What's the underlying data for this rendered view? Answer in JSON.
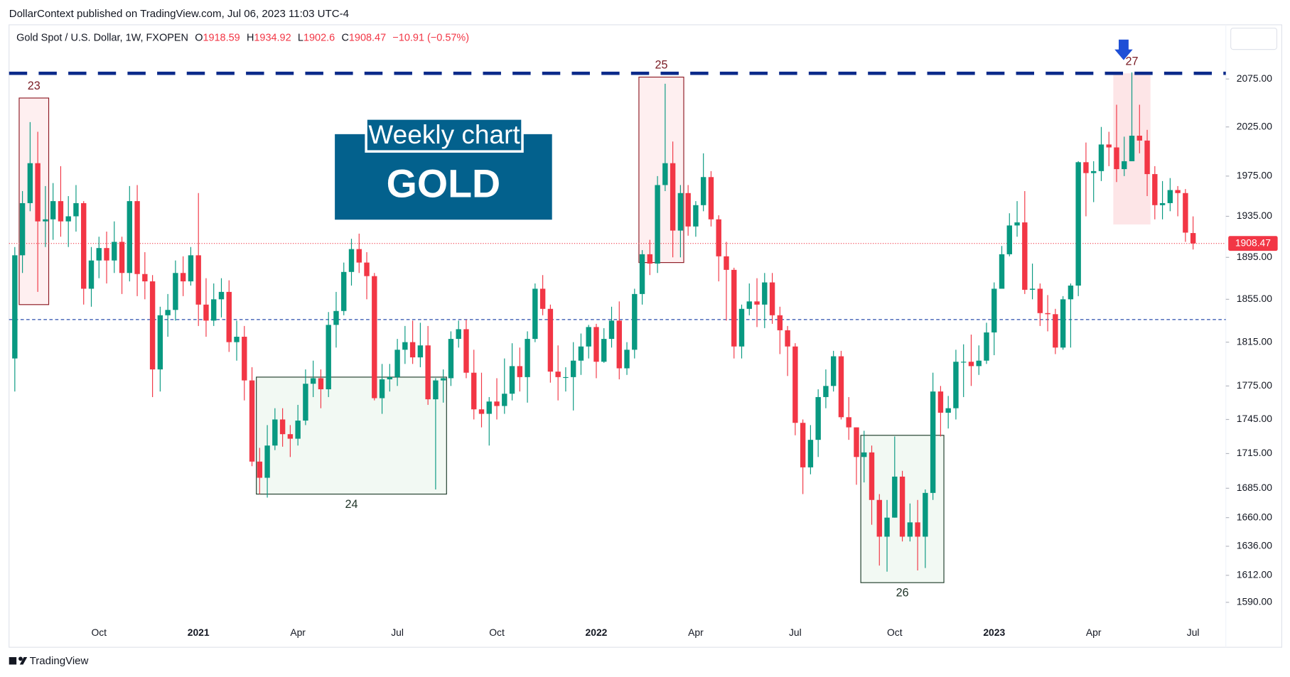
{
  "chart_data": {
    "type": "candlestick",
    "publisher_note": "DollarContext published on TradingView.com, Jul 06, 2023 11:03 UTC-4",
    "symbol": "Gold Spot / U.S. Dollar, 1W, FXOPEN",
    "ohlc_letters": [
      "O",
      "H",
      "L",
      "C"
    ],
    "change_text": "−10.91 (−0.57%)",
    "branding": "TradingView",
    "title_box": {
      "line1": "Weekly chart",
      "line2": "GOLD",
      "color": "#03618d"
    },
    "up_color": "#089981",
    "down_color": "#f23645",
    "log_scale": true,
    "ylim": [
      1575,
      2133
    ],
    "yticks": [
      {
        "value": 1590,
        "label": "1590.00"
      },
      {
        "value": 1612,
        "label": "1612.00"
      },
      {
        "value": 1636,
        "label": "1636.00"
      },
      {
        "value": 1660,
        "label": "1660.00"
      },
      {
        "value": 1685,
        "label": "1685.00"
      },
      {
        "value": 1715,
        "label": "1715.00"
      },
      {
        "value": 1745,
        "label": "1745.00"
      },
      {
        "value": 1775,
        "label": "1775.00"
      },
      {
        "value": 1815,
        "label": "1815.00"
      },
      {
        "value": 1855,
        "label": "1855.00"
      },
      {
        "value": 1895,
        "label": "1895.00"
      },
      {
        "value": 1935,
        "label": "1935.00"
      },
      {
        "value": 1975,
        "label": "1975.00"
      },
      {
        "value": 2025,
        "label": "2025.00"
      },
      {
        "value": 2075,
        "label": "2075.00"
      }
    ],
    "resistance_line": {
      "value": 2081,
      "color": "#0b2a8a"
    },
    "support_line": {
      "value": 1836,
      "color": "#3f5fb5"
    },
    "last_price_color": "#f23645",
    "annotations": [
      {
        "label": "23",
        "start": 1,
        "end": 4,
        "top": 2055,
        "bottom": 1850,
        "style": "red",
        "label_pos": "top"
      },
      {
        "label": "24",
        "start": 32,
        "end": 56,
        "top": 1783,
        "bottom": 1680,
        "style": "green",
        "label_pos": "bottom"
      },
      {
        "label": "25",
        "start": 82,
        "end": 87,
        "top": 2077,
        "bottom": 1890,
        "style": "red",
        "label_pos": "top"
      },
      {
        "label": "26",
        "start": 111,
        "end": 121,
        "top": 1731,
        "bottom": 1606,
        "style": "green",
        "label_pos": "bottom"
      },
      {
        "label": "27",
        "start": 144,
        "end": 148,
        "top": 2081,
        "bottom": 1927,
        "style": "pink",
        "label_pos": "top"
      }
    ],
    "categories": [
      null,
      null,
      null,
      null,
      null,
      null,
      null,
      null,
      null,
      null,
      null,
      "Oct",
      null,
      null,
      null,
      null,
      null,
      null,
      null,
      null,
      null,
      null,
      null,
      null,
      "2021",
      null,
      null,
      null,
      null,
      null,
      null,
      null,
      null,
      null,
      null,
      null,
      null,
      "Apr",
      null,
      null,
      null,
      null,
      null,
      null,
      null,
      null,
      null,
      null,
      null,
      null,
      "Jul",
      null,
      null,
      null,
      null,
      null,
      null,
      null,
      null,
      null,
      null,
      null,
      null,
      "Oct",
      null,
      null,
      null,
      null,
      null,
      null,
      null,
      null,
      null,
      null,
      null,
      null,
      "2022",
      null,
      null,
      null,
      null,
      null,
      null,
      null,
      null,
      null,
      null,
      null,
      null,
      "Apr",
      null,
      null,
      null,
      null,
      null,
      null,
      null,
      null,
      null,
      null,
      null,
      null,
      "Jul",
      null,
      null,
      null,
      null,
      null,
      null,
      null,
      null,
      null,
      null,
      null,
      null,
      "Oct",
      null,
      null,
      null,
      null,
      null,
      null,
      null,
      null,
      null,
      null,
      null,
      null,
      "2023",
      null,
      null,
      null,
      null,
      null,
      null,
      null,
      null,
      null,
      null,
      null,
      null,
      "Apr",
      null,
      null,
      null,
      null,
      null,
      null,
      null,
      null,
      null,
      null,
      null,
      null,
      "Jul"
    ],
    "open": [
      1800,
      1897,
      1948,
      1988,
      1930,
      1932,
      1950,
      1930,
      1935,
      1948,
      1865,
      1892,
      1904,
      1892,
      1910,
      1880,
      1950,
      1879,
      1872,
      1790,
      1840,
      1845,
      1880,
      1872,
      1897,
      1850,
      1835,
      1855,
      1862,
      1815,
      1820,
      1780,
      1708,
      1694,
      1722,
      1745,
      1732,
      1728,
      1744,
      1777,
      1782,
      1772,
      1831,
      1844,
      1881,
      1903,
      1890,
      1877,
      1764,
      1781,
      1783,
      1808,
      1815,
      1801,
      1812,
      1763,
      1780,
      1782,
      1818,
      1827,
      1787,
      1754,
      1750,
      1761,
      1757,
      1768,
      1793,
      1783,
      1818,
      1865,
      1846,
      1788,
      1783,
      1783,
      1798,
      1811,
      1829,
      1797,
      1818,
      1835,
      1791,
      1808,
      1860,
      1898,
      1889,
      1966,
      1988,
      1921,
      1958,
      1925,
      1946,
      1974,
      1932,
      1896,
      1883,
      1811,
      1846,
      1853,
      1850,
      1871,
      1840,
      1826,
      1811,
      1742,
      1703,
      1727,
      1765,
      1775,
      1802,
      1747,
      1738,
      1712,
      1716,
      1675,
      1644,
      1660,
      1695,
      1644,
      1656,
      1644,
      1681,
      1770,
      1751,
      1755,
      1797,
      1797,
      1793,
      1798,
      1824,
      1865,
      1898,
      1926,
      1929,
      1864,
      1865,
      1842,
      1841,
      1810,
      1855,
      1868,
      1989,
      1978,
      1980,
      2007,
      2004,
      1982,
      1990,
      2016,
      2011,
      1977,
      1946,
      1948,
      1961,
      1958,
      1918.59
    ],
    "high": [
      1905,
      1960,
      2030,
      2020,
      1965,
      1968,
      1985,
      1955,
      1966,
      1950,
      1905,
      1915,
      1920,
      1930,
      1915,
      1965,
      1966,
      1900,
      1878,
      1848,
      1860,
      1892,
      1896,
      1905,
      1958,
      1875,
      1870,
      1875,
      1873,
      1835,
      1830,
      1792,
      1720,
      1740,
      1755,
      1755,
      1740,
      1758,
      1790,
      1798,
      1790,
      1843,
      1862,
      1890,
      1913,
      1918,
      1900,
      1880,
      1795,
      1795,
      1818,
      1830,
      1835,
      1833,
      1830,
      1782,
      1790,
      1825,
      1835,
      1836,
      1808,
      1787,
      1765,
      1782,
      1800,
      1814,
      1810,
      1825,
      1870,
      1878,
      1850,
      1812,
      1792,
      1815,
      1823,
      1831,
      1832,
      1828,
      1848,
      1853,
      1815,
      1865,
      1902,
      1912,
      1975,
      2070,
      2010,
      1966,
      1966,
      1950,
      1998,
      1980,
      1936,
      1910,
      1885,
      1850,
      1870,
      1875,
      1880,
      1880,
      1848,
      1830,
      1814,
      1745,
      1740,
      1772,
      1790,
      1807,
      1807,
      1765,
      1738,
      1735,
      1722,
      1680,
      1675,
      1730,
      1700,
      1672,
      1675,
      1684,
      1787,
      1775,
      1766,
      1808,
      1813,
      1822,
      1812,
      1833,
      1871,
      1906,
      1938,
      1950,
      1960,
      1889,
      1870,
      1859,
      1846,
      1858,
      1870,
      1990,
      2009,
      1990,
      2025,
      2020,
      2048,
      2015,
      2082,
      2048,
      2022,
      1985,
      1970,
      1973,
      1965,
      1962,
      1934.92
    ],
    "low": [
      1770,
      1880,
      1940,
      1862,
      1905,
      1912,
      1915,
      1905,
      1920,
      1850,
      1848,
      1875,
      1870,
      1880,
      1860,
      1872,
      1858,
      1855,
      1765,
      1770,
      1820,
      1835,
      1858,
      1868,
      1830,
      1820,
      1830,
      1838,
      1806,
      1798,
      1762,
      1704,
      1680,
      1677,
      1718,
      1721,
      1712,
      1722,
      1740,
      1765,
      1755,
      1765,
      1810,
      1840,
      1868,
      1880,
      1855,
      1762,
      1750,
      1770,
      1775,
      1795,
      1795,
      1792,
      1758,
      1684,
      1760,
      1775,
      1810,
      1782,
      1745,
      1738,
      1722,
      1745,
      1750,
      1762,
      1770,
      1760,
      1815,
      1840,
      1778,
      1762,
      1770,
      1753,
      1785,
      1800,
      1782,
      1796,
      1810,
      1781,
      1785,
      1800,
      1850,
      1878,
      1880,
      1960,
      1895,
      1895,
      1916,
      1915,
      1940,
      1925,
      1872,
      1835,
      1800,
      1800,
      1840,
      1829,
      1828,
      1832,
      1804,
      1784,
      1731,
      1680,
      1697,
      1712,
      1755,
      1770,
      1745,
      1727,
      1688,
      1690,
      1654,
      1620,
      1615,
      1660,
      1640,
      1640,
      1616,
      1618,
      1675,
      1730,
      1737,
      1745,
      1765,
      1775,
      1785,
      1795,
      1803,
      1867,
      1896,
      1915,
      1860,
      1855,
      1830,
      1825,
      1804,
      1808,
      1810,
      1858,
      1935,
      1949,
      1970,
      1985,
      1969,
      1975,
      1990,
      1998,
      1955,
      1932,
      1932,
      1940,
      1935,
      1910,
      1902.6
    ],
    "close": [
      1897,
      1948,
      1988,
      1930,
      1932,
      1950,
      1930,
      1935,
      1948,
      1865,
      1892,
      1904,
      1892,
      1910,
      1880,
      1950,
      1879,
      1872,
      1790,
      1840,
      1845,
      1880,
      1872,
      1897,
      1850,
      1835,
      1855,
      1862,
      1815,
      1820,
      1780,
      1708,
      1694,
      1722,
      1745,
      1732,
      1728,
      1744,
      1777,
      1782,
      1772,
      1831,
      1844,
      1881,
      1903,
      1890,
      1877,
      1764,
      1781,
      1783,
      1808,
      1815,
      1801,
      1812,
      1763,
      1780,
      1782,
      1818,
      1827,
      1787,
      1754,
      1750,
      1761,
      1757,
      1768,
      1793,
      1783,
      1818,
      1865,
      1846,
      1788,
      1783,
      1783,
      1798,
      1811,
      1829,
      1797,
      1818,
      1835,
      1791,
      1808,
      1860,
      1898,
      1889,
      1966,
      1988,
      1921,
      1958,
      1925,
      1946,
      1974,
      1932,
      1896,
      1883,
      1811,
      1846,
      1853,
      1850,
      1871,
      1840,
      1826,
      1811,
      1742,
      1703,
      1727,
      1765,
      1775,
      1802,
      1747,
      1738,
      1712,
      1716,
      1675,
      1644,
      1660,
      1695,
      1644,
      1656,
      1644,
      1681,
      1770,
      1751,
      1755,
      1797,
      1797,
      1793,
      1798,
      1824,
      1865,
      1898,
      1926,
      1929,
      1864,
      1865,
      1842,
      1841,
      1810,
      1855,
      1868,
      1989,
      1978,
      1980,
      2007,
      2004,
      1982,
      1990,
      2016,
      2011,
      1977,
      1946,
      1948,
      1961,
      1958,
      1919,
      1908.47
    ]
  }
}
